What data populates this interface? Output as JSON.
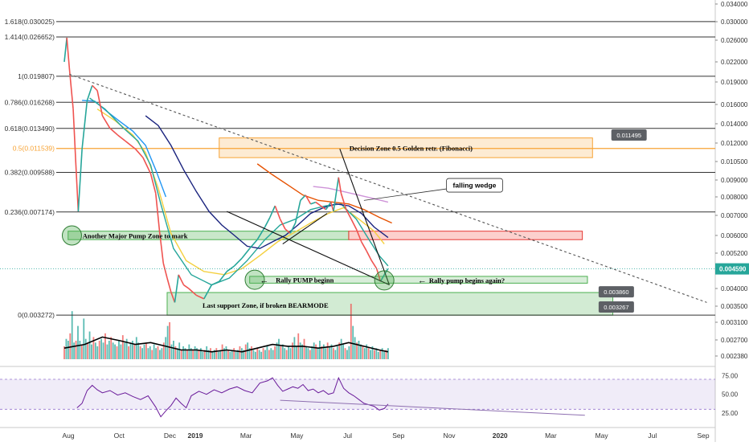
{
  "chart_data": {
    "type": "line",
    "title": "",
    "xlabel": "",
    "ylabel": "",
    "price_axis": {
      "ticks": [
        0.0238,
        0.027,
        0.031,
        0.035,
        0.04,
        0.0452,
        0.052,
        0.06,
        0.07,
        0.08,
        0.09,
        0.105,
        0.12,
        0.14,
        0.16,
        0.19,
        0.22,
        0.26,
        0.3,
        0.34
      ],
      "tick_labels": [
        "0.002380",
        "0.002700",
        "0.003100",
        "0.003500",
        "0.004000",
        "0.004520",
        "0.005200",
        "0.006000",
        "0.007000",
        "0.008000",
        "0.009000",
        "0.010500",
        "0.012000",
        "0.014000",
        "0.016000",
        "0.019000",
        "0.022000",
        "0.026000",
        "0.030000",
        "0.034000"
      ],
      "current_price": 0.0459,
      "current_price_label": "0.004590",
      "current_price_color": "#26a69a"
    },
    "time_axis": {
      "labels": [
        "Aug",
        "Oct",
        "Dec",
        "2019",
        "Mar",
        "May",
        "Jul",
        "Sep",
        "Nov",
        "2020",
        "Mar",
        "May",
        "Jul",
        "Sep"
      ],
      "months_from_aug_2018": [
        0,
        2,
        4,
        5,
        7,
        9,
        11,
        13,
        15,
        17,
        19,
        21,
        23,
        25
      ]
    },
    "fibonacci_levels": [
      {
        "ratio": 1.618,
        "price": 0.030025,
        "label": "1.618(0.030025)",
        "color": "#333333"
      },
      {
        "ratio": 1.414,
        "price": 0.026652,
        "label": "1.414(0.026652)",
        "color": "#333333"
      },
      {
        "ratio": 1,
        "price": 0.019807,
        "label": "1(0.019807)",
        "color": "#333333"
      },
      {
        "ratio": 0.786,
        "price": 0.016268,
        "label": "0.786(0.016268)",
        "color": "#333333"
      },
      {
        "ratio": 0.618,
        "price": 0.01349,
        "label": "0.618(0.013490)",
        "color": "#333333"
      },
      {
        "ratio": 0.5,
        "price": 0.011539,
        "label": "0.5(0.011539)",
        "color": "#f7a335"
      },
      {
        "ratio": 0.382,
        "price": 0.009588,
        "label": "0.382(0.009588)",
        "color": "#333333"
      },
      {
        "ratio": 0.236,
        "price": 0.007174,
        "label": "0.236(0.007174)",
        "color": "#333333"
      },
      {
        "ratio": 0,
        "price": 0.003272,
        "label": "0(0.003272)",
        "color": "#333333"
      }
    ],
    "price_series": [
      {
        "t": 0,
        "v": 0.022
      },
      {
        "t": 0.1,
        "v": 0.0265
      },
      {
        "t": 0.2,
        "v": 0.021
      },
      {
        "t": 0.35,
        "v": 0.0155
      },
      {
        "t": 0.45,
        "v": 0.0105
      },
      {
        "t": 0.55,
        "v": 0.0072
      },
      {
        "t": 0.7,
        "v": 0.0115
      },
      {
        "t": 0.9,
        "v": 0.0165
      },
      {
        "t": 1.1,
        "v": 0.0185
      },
      {
        "t": 1.3,
        "v": 0.0178
      },
      {
        "t": 1.5,
        "v": 0.0148
      },
      {
        "t": 1.8,
        "v": 0.0135
      },
      {
        "t": 2.1,
        "v": 0.0128
      },
      {
        "t": 2.4,
        "v": 0.0122
      },
      {
        "t": 2.8,
        "v": 0.0115
      },
      {
        "t": 3.1,
        "v": 0.0108
      },
      {
        "t": 3.4,
        "v": 0.0095
      },
      {
        "t": 3.6,
        "v": 0.0082
      },
      {
        "t": 3.75,
        "v": 0.0062
      },
      {
        "t": 3.9,
        "v": 0.0048
      },
      {
        "t": 4.05,
        "v": 0.0043
      },
      {
        "t": 4.2,
        "v": 0.0039
      },
      {
        "t": 4.35,
        "v": 0.0036
      },
      {
        "t": 4.5,
        "v": 0.0044
      },
      {
        "t": 4.7,
        "v": 0.0041
      },
      {
        "t": 4.9,
        "v": 0.004
      },
      {
        "t": 5.2,
        "v": 0.0038
      },
      {
        "t": 5.5,
        "v": 0.0037
      },
      {
        "t": 5.8,
        "v": 0.0041
      },
      {
        "t": 6.1,
        "v": 0.0042
      },
      {
        "t": 6.4,
        "v": 0.0045
      },
      {
        "t": 6.7,
        "v": 0.0047
      },
      {
        "t": 7,
        "v": 0.005
      },
      {
        "t": 7.3,
        "v": 0.0054
      },
      {
        "t": 7.6,
        "v": 0.0058
      },
      {
        "t": 7.9,
        "v": 0.0064
      },
      {
        "t": 8.1,
        "v": 0.0069
      },
      {
        "t": 8.3,
        "v": 0.0075
      },
      {
        "t": 8.5,
        "v": 0.0068
      },
      {
        "t": 8.7,
        "v": 0.0063
      },
      {
        "t": 8.9,
        "v": 0.0061
      },
      {
        "t": 9.1,
        "v": 0.0066
      },
      {
        "t": 9.3,
        "v": 0.0078
      },
      {
        "t": 9.5,
        "v": 0.0081
      },
      {
        "t": 9.7,
        "v": 0.0076
      },
      {
        "t": 9.9,
        "v": 0.0077
      },
      {
        "t": 10.1,
        "v": 0.0075
      },
      {
        "t": 10.3,
        "v": 0.0073
      },
      {
        "t": 10.5,
        "v": 0.0077
      },
      {
        "t": 10.6,
        "v": 0.0072
      },
      {
        "t": 10.8,
        "v": 0.0092
      },
      {
        "t": 10.9,
        "v": 0.0082
      },
      {
        "t": 11.1,
        "v": 0.0073
      },
      {
        "t": 11.3,
        "v": 0.0068
      },
      {
        "t": 11.5,
        "v": 0.0063
      },
      {
        "t": 11.7,
        "v": 0.0057
      },
      {
        "t": 11.9,
        "v": 0.0053
      },
      {
        "t": 12.1,
        "v": 0.0049
      },
      {
        "t": 12.3,
        "v": 0.0046
      },
      {
        "t": 12.45,
        "v": 0.0042
      },
      {
        "t": 12.6,
        "v": 0.0044
      },
      {
        "t": 12.75,
        "v": 0.0046
      }
    ],
    "moving_averages": [
      {
        "color": "#2196f3",
        "points": [
          [
            0.7,
            0.0165
          ],
          [
            1.2,
            0.0164
          ],
          [
            1.7,
            0.0152
          ],
          [
            2.2,
            0.0142
          ],
          [
            2.7,
            0.0132
          ],
          [
            3.2,
            0.0118
          ],
          [
            3.6,
            0.0098
          ],
          [
            4,
            0.008
          ]
        ]
      },
      {
        "color": "#f4d03f",
        "points": [
          [
            1.3,
            0.0155
          ],
          [
            2,
            0.0143
          ],
          [
            2.7,
            0.0128
          ],
          [
            3.2,
            0.0112
          ],
          [
            3.7,
            0.0085
          ],
          [
            4.2,
            0.0061
          ],
          [
            4.8,
            0.0049
          ],
          [
            5.5,
            0.0045
          ],
          [
            6.3,
            0.0044
          ],
          [
            7,
            0.0046
          ],
          [
            7.7,
            0.0051
          ],
          [
            8.4,
            0.0057
          ],
          [
            9,
            0.0061
          ],
          [
            9.7,
            0.0066
          ],
          [
            10.4,
            0.0071
          ],
          [
            11,
            0.0074
          ],
          [
            11.6,
            0.0068
          ],
          [
            12.2,
            0.0062
          ],
          [
            12.6,
            0.0056
          ]
        ]
      },
      {
        "color": "#26a69a",
        "points": [
          [
            1,
            0.0168
          ],
          [
            1.6,
            0.0155
          ],
          [
            2.3,
            0.0136
          ],
          [
            2.9,
            0.0122
          ],
          [
            3.4,
            0.0102
          ],
          [
            3.8,
            0.0076
          ],
          [
            4.3,
            0.0054
          ],
          [
            5,
            0.0044
          ],
          [
            5.8,
            0.0041
          ],
          [
            6.5,
            0.0043
          ],
          [
            7.2,
            0.0049
          ],
          [
            7.9,
            0.0058
          ],
          [
            8.5,
            0.0065
          ],
          [
            9.1,
            0.0068
          ],
          [
            9.7,
            0.0073
          ],
          [
            10.3,
            0.0075
          ],
          [
            10.9,
            0.0076
          ],
          [
            11.5,
            0.0068
          ],
          [
            12,
            0.0058
          ],
          [
            12.4,
            0.0051
          ],
          [
            12.75,
            0.0047
          ]
        ]
      },
      {
        "color": "#1a237e",
        "points": [
          [
            3.2,
            0.0148
          ],
          [
            3.7,
            0.0138
          ],
          [
            4.2,
            0.0118
          ],
          [
            4.7,
            0.0098
          ],
          [
            5.2,
            0.0083
          ],
          [
            5.7,
            0.0072
          ],
          [
            6.2,
            0.0065
          ],
          [
            6.7,
            0.006
          ],
          [
            7.2,
            0.0055
          ],
          [
            7.7,
            0.0054
          ],
          [
            8.2,
            0.0057
          ],
          [
            8.7,
            0.006
          ],
          [
            9.2,
            0.0065
          ],
          [
            9.7,
            0.0071
          ],
          [
            10.2,
            0.0074
          ],
          [
            10.7,
            0.0076
          ],
          [
            11.2,
            0.0075
          ],
          [
            11.7,
            0.0071
          ],
          [
            12.2,
            0.0064
          ],
          [
            12.75,
            0.0059
          ]
        ]
      },
      {
        "color": "#e65100",
        "points": [
          [
            7.6,
            0.0103
          ],
          [
            8.2,
            0.0094
          ],
          [
            8.8,
            0.0087
          ],
          [
            9.4,
            0.0081
          ],
          [
            10,
            0.0078
          ],
          [
            10.6,
            0.0077
          ],
          [
            11.2,
            0.0076
          ],
          [
            11.8,
            0.0073
          ],
          [
            12.4,
            0.0069
          ],
          [
            12.9,
            0.0066
          ]
        ]
      },
      {
        "color": "#ce93d8",
        "points": [
          [
            9.8,
            0.0086
          ],
          [
            10.4,
            0.0085
          ],
          [
            11,
            0.0083
          ],
          [
            11.6,
            0.0081
          ],
          [
            12.2,
            0.0079
          ],
          [
            12.75,
            0.0077
          ]
        ]
      }
    ],
    "trendlines": [
      {
        "style": "dashed",
        "color": "#555555",
        "points": [
          [
            0.2,
            0.0201
          ],
          [
            25.3,
            0.0036
          ]
        ]
      },
      {
        "style": "solid",
        "color": "#111111",
        "points": [
          [
            6.4,
            0.0072
          ],
          [
            12.8,
            0.0041
          ]
        ]
      },
      {
        "style": "solid",
        "color": "#111111",
        "points": [
          [
            10.85,
            0.0115
          ],
          [
            12.8,
            0.0041
          ]
        ]
      },
      {
        "style": "solid",
        "color": "#111111",
        "points": [
          [
            8.6,
            0.0056
          ],
          [
            10.35,
            0.0071
          ]
        ]
      }
    ],
    "zones": [
      {
        "label": "Decision Zone 0.5 Golden retr. (Fibonacci)",
        "t0": 6.1,
        "t1": 20.8,
        "p0": 0.0108,
        "p1": 0.0125,
        "fill": "rgba(247,163,53,0.22)",
        "stroke": "#f7a335"
      },
      {
        "label": "Another Major Pump Zone to mark",
        "t0": 0.15,
        "t1": 11.2,
        "p0": 0.0058,
        "p1": 0.0062,
        "fill": "rgba(76,175,80,0.30)",
        "stroke": "#4caf50"
      },
      {
        "label": "",
        "t0": 11.2,
        "t1": 20.4,
        "p0": 0.0058,
        "p1": 0.0062,
        "fill": "rgba(244,67,54,0.25)",
        "stroke": "#e53935"
      },
      {
        "label": "Rally PUMP beginn",
        "t0": 7.3,
        "t1": 20.6,
        "p0": 0.00415,
        "p1": 0.00435,
        "fill": "rgba(76,175,80,0.22)",
        "stroke": "#4caf50"
      },
      {
        "label": "Last support Zone, if broken BEARMODE",
        "t0": 4.05,
        "t1": 21.6,
        "p0": 0.00327,
        "p1": 0.00388,
        "fill": "rgba(76,175,80,0.25)",
        "stroke": "#4caf50"
      }
    ],
    "circles": [
      {
        "t": 0.3,
        "p": 0.006
      },
      {
        "t": 7.5,
        "p": 0.00425
      },
      {
        "t": 12.6,
        "p": 0.00423
      }
    ],
    "annotations": [
      {
        "text": "falling wedge",
        "t": 15.3,
        "p": 0.0087
      },
      {
        "text": "Rally pump begins again?",
        "t": 14.3,
        "p": 0.00424
      }
    ],
    "callouts": [
      {
        "text": "0.011495",
        "t": 22.3,
        "p": 0.0128
      },
      {
        "text": "0.003860",
        "t": 21.8,
        "p": 0.0039
      },
      {
        "text": "0.003267",
        "t": 21.8,
        "p": 0.00348
      }
    ],
    "volume": [
      7,
      11,
      10,
      14,
      26,
      9,
      10,
      18,
      10,
      8,
      22,
      11,
      9,
      15,
      8,
      12,
      9,
      7,
      10,
      11,
      9,
      14,
      8,
      10,
      12,
      9,
      8,
      7,
      10,
      8,
      13,
      9,
      11,
      7,
      9,
      10,
      8,
      12,
      9,
      7,
      6,
      8,
      9,
      6,
      7,
      5,
      8,
      6,
      7,
      5,
      6,
      9,
      12,
      18,
      20,
      8,
      10,
      7,
      6,
      9,
      5,
      7,
      6,
      5,
      8,
      6,
      5,
      7,
      6,
      5,
      6,
      4,
      5,
      7,
      5,
      6,
      4,
      5,
      6,
      4,
      5,
      8,
      6,
      7,
      5,
      4,
      5,
      6,
      4,
      5,
      7,
      6,
      5,
      8,
      9,
      6,
      7,
      5,
      4,
      6,
      5,
      4,
      6,
      5,
      7,
      5,
      6,
      5,
      7,
      9,
      11,
      7,
      8,
      6,
      5,
      7,
      6,
      9,
      12,
      7,
      14,
      9,
      8,
      11,
      7,
      6,
      5,
      7,
      9,
      8,
      6,
      10,
      7,
      8,
      6,
      9,
      7,
      8,
      6,
      5,
      7,
      9,
      11,
      8,
      6,
      5,
      7,
      30,
      18,
      12,
      9,
      10,
      8,
      7,
      6,
      8,
      6,
      5,
      7,
      5,
      6,
      4,
      5,
      6,
      4,
      5,
      6
    ],
    "volume_ma": [
      [
        0,
        6
      ],
      [
        0.8,
        8
      ],
      [
        1.5,
        12
      ],
      [
        2.2,
        10
      ],
      [
        2.8,
        8
      ],
      [
        3.4,
        9
      ],
      [
        4,
        7
      ],
      [
        4.6,
        5
      ],
      [
        5.2,
        5
      ],
      [
        5.8,
        4
      ],
      [
        6.4,
        5
      ],
      [
        7,
        4
      ],
      [
        7.6,
        6
      ],
      [
        8.2,
        8
      ],
      [
        8.8,
        7
      ],
      [
        9.4,
        7
      ],
      [
        10,
        6
      ],
      [
        10.6,
        7
      ],
      [
        11.2,
        9
      ],
      [
        11.8,
        7
      ],
      [
        12.4,
        5
      ],
      [
        12.75,
        4
      ]
    ],
    "rsi": {
      "levels": [
        70,
        30
      ],
      "tick_labels": [
        "75.00",
        "50.00",
        "25.00"
      ],
      "ticks": [
        75,
        50,
        25
      ],
      "series": [
        [
          0.5,
          32
        ],
        [
          0.7,
          38
        ],
        [
          0.9,
          55
        ],
        [
          1.1,
          62
        ],
        [
          1.3,
          56
        ],
        [
          1.5,
          52
        ],
        [
          1.8,
          55
        ],
        [
          2.1,
          49
        ],
        [
          2.4,
          52
        ],
        [
          2.7,
          47
        ],
        [
          3,
          43
        ],
        [
          3.3,
          48
        ],
        [
          3.6,
          33
        ],
        [
          3.8,
          20
        ],
        [
          4,
          28
        ],
        [
          4.2,
          35
        ],
        [
          4.4,
          45
        ],
        [
          4.6,
          38
        ],
        [
          4.8,
          32
        ],
        [
          5,
          48
        ],
        [
          5.3,
          54
        ],
        [
          5.6,
          50
        ],
        [
          5.9,
          56
        ],
        [
          6.2,
          52
        ],
        [
          6.5,
          57
        ],
        [
          6.8,
          60
        ],
        [
          7.1,
          55
        ],
        [
          7.4,
          52
        ],
        [
          7.7,
          65
        ],
        [
          8,
          68
        ],
        [
          8.2,
          72
        ],
        [
          8.4,
          62
        ],
        [
          8.6,
          54
        ],
        [
          8.8,
          57
        ],
        [
          9,
          60
        ],
        [
          9.2,
          58
        ],
        [
          9.4,
          63
        ],
        [
          9.6,
          55
        ],
        [
          9.8,
          57
        ],
        [
          10,
          52
        ],
        [
          10.2,
          55
        ],
        [
          10.4,
          50
        ],
        [
          10.6,
          52
        ],
        [
          10.8,
          72
        ],
        [
          11,
          58
        ],
        [
          11.2,
          52
        ],
        [
          11.4,
          48
        ],
        [
          11.6,
          43
        ],
        [
          11.8,
          38
        ],
        [
          12,
          36
        ],
        [
          12.2,
          34
        ],
        [
          12.4,
          29
        ],
        [
          12.6,
          31
        ],
        [
          12.75,
          37
        ]
      ],
      "divergence": [
        [
          8.5,
          42
        ],
        [
          20.5,
          22
        ]
      ]
    }
  }
}
